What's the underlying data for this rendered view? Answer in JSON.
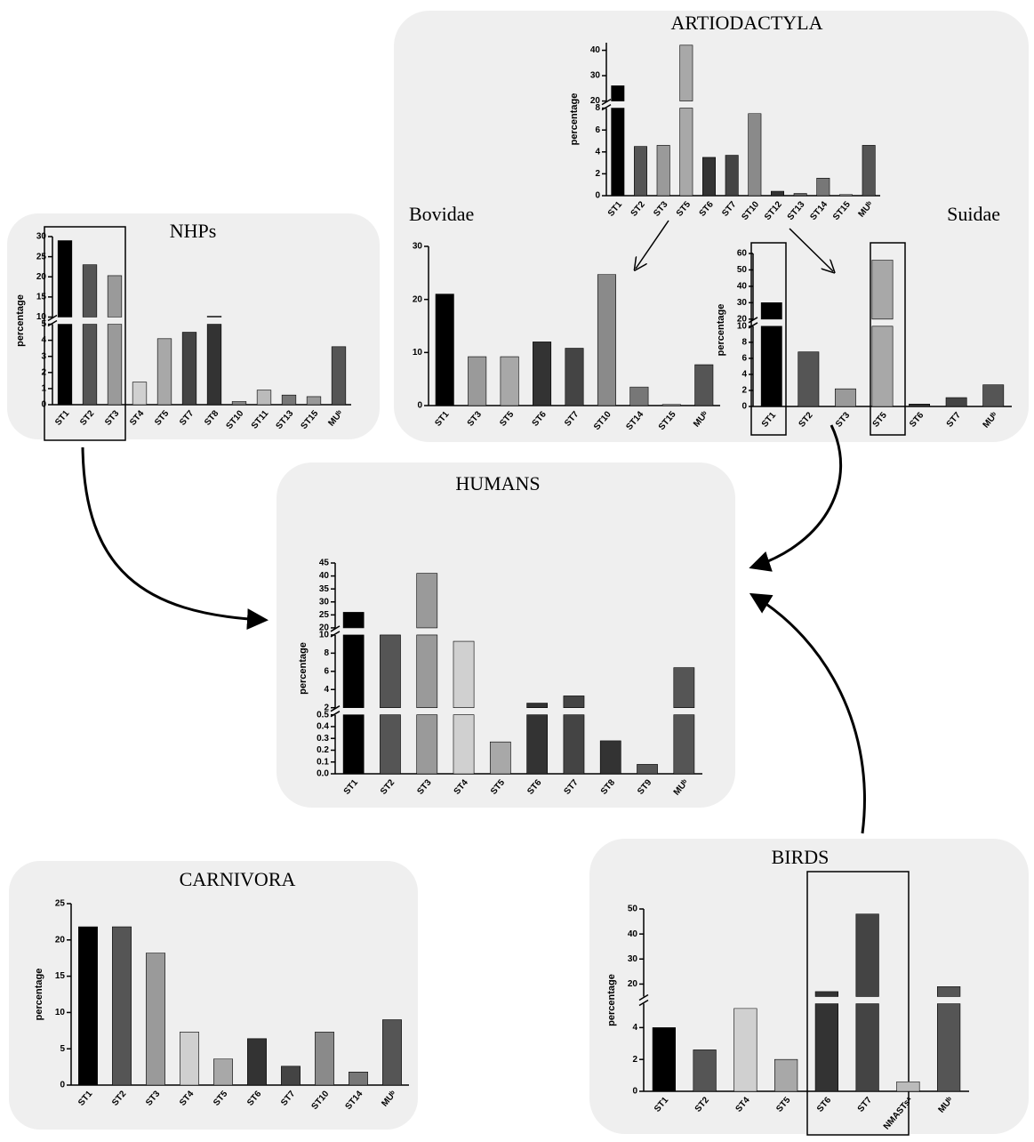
{
  "chart_data": [
    {
      "type": "bar",
      "title": "ARTIODACTYLA",
      "ylabel": "percentage",
      "categories": [
        "ST1",
        "ST2",
        "ST3",
        "ST5",
        "ST6",
        "ST7",
        "ST10",
        "ST12",
        "ST13",
        "ST14",
        "ST15",
        "MUᵇ"
      ],
      "values": [
        26,
        4.5,
        4.6,
        42,
        3.5,
        3.7,
        7.5,
        0.4,
        0.2,
        1.6,
        0.1,
        4.6
      ],
      "colors": [
        "#000000",
        "#555555",
        "#9a9a9a",
        "#a8a8a8",
        "#333333",
        "#444444",
        "#8a8a8a",
        "#333333",
        "#666666",
        "#777777",
        "#bbbbbb",
        "#555555"
      ],
      "y_segments": [
        {
          "ylim": [
            0,
            8
          ],
          "yticks": [
            0,
            2,
            4,
            6,
            8
          ]
        },
        {
          "ylim": [
            20,
            43
          ],
          "yticks": [
            20,
            30,
            40
          ]
        }
      ]
    },
    {
      "type": "bar",
      "title": "Bovidae",
      "categories": [
        "ST1",
        "ST3",
        "ST5",
        "ST6",
        "ST7",
        "ST10",
        "ST14",
        "ST15",
        "MUᵇ"
      ],
      "values": [
        21,
        9.2,
        9.2,
        12,
        10.8,
        24.7,
        3.5,
        0.2,
        7.7
      ],
      "colors": [
        "#000000",
        "#9a9a9a",
        "#a8a8a8",
        "#333333",
        "#444444",
        "#8a8a8a",
        "#777777",
        "#bbbbbb",
        "#555555"
      ],
      "y_segments": [
        {
          "ylim": [
            0,
            30
          ],
          "yticks": [
            0,
            10,
            20,
            30
          ]
        }
      ]
    },
    {
      "type": "bar",
      "title": "Suidae",
      "ylabel": "percentage",
      "categories": [
        "ST1",
        "ST2",
        "ST3",
        "ST5",
        "ST6",
        "ST7",
        "MUᵇ"
      ],
      "values": [
        30,
        6.8,
        2.2,
        56,
        0.3,
        1.1,
        2.7
      ],
      "colors": [
        "#000000",
        "#555555",
        "#9a9a9a",
        "#a8a8a8",
        "#333333",
        "#444444",
        "#555555"
      ],
      "y_segments": [
        {
          "ylim": [
            0,
            10
          ],
          "yticks": [
            0,
            2,
            4,
            6,
            8,
            10
          ]
        },
        {
          "ylim": [
            20,
            60
          ],
          "yticks": [
            20,
            30,
            40,
            50,
            60
          ]
        }
      ]
    },
    {
      "type": "bar",
      "title": "NHPs",
      "ylabel": "percentage",
      "categories": [
        "ST1",
        "ST2",
        "ST3",
        "ST4",
        "ST5",
        "ST7",
        "ST8",
        "ST10",
        "ST11",
        "ST13",
        "ST15",
        "MUᵇ"
      ],
      "values": [
        29,
        23,
        20.3,
        1.4,
        4.1,
        4.5,
        10.2,
        0.2,
        0.9,
        0.6,
        0.5,
        3.6
      ],
      "colors": [
        "#000000",
        "#555555",
        "#9a9a9a",
        "#d0d0d0",
        "#a8a8a8",
        "#444444",
        "#333333",
        "#888888",
        "#bbbbbb",
        "#777777",
        "#999999",
        "#555555"
      ],
      "y_segments": [
        {
          "ylim": [
            0,
            5
          ],
          "yticks": [
            0,
            1,
            2,
            3,
            4,
            5
          ]
        },
        {
          "ylim": [
            10,
            30
          ],
          "yticks": [
            10,
            15,
            20,
            25,
            30
          ]
        }
      ]
    },
    {
      "type": "bar",
      "title": "HUMANS",
      "ylabel": "percentage",
      "categories": [
        "ST1",
        "ST2",
        "ST3",
        "ST4",
        "ST5",
        "ST6",
        "ST7",
        "ST8",
        "ST9",
        "MUᵇ"
      ],
      "values": [
        26,
        10,
        41,
        9.3,
        0.27,
        2.5,
        3.3,
        0.28,
        0.08,
        6.4
      ],
      "colors": [
        "#000000",
        "#555555",
        "#9a9a9a",
        "#d0d0d0",
        "#a8a8a8",
        "#333333",
        "#444444",
        "#333333",
        "#555555",
        "#555555"
      ],
      "y_segments": [
        {
          "ylim": [
            0,
            0.5
          ],
          "yticks": [
            {
              "value": 0,
              "label": "0.0"
            },
            0.1,
            0.2,
            0.3,
            0.4,
            0.5
          ]
        },
        {
          "ylim": [
            2,
            10
          ],
          "yticks": [
            2,
            4,
            6,
            8,
            10
          ]
        },
        {
          "ylim": [
            20,
            45
          ],
          "yticks": [
            20,
            25,
            30,
            35,
            40,
            45
          ]
        }
      ]
    },
    {
      "type": "bar",
      "title": "CARNIVORA",
      "ylabel": "percentage",
      "categories": [
        "ST1",
        "ST2",
        "ST3",
        "ST4",
        "ST5",
        "ST6",
        "ST7",
        "ST10",
        "ST14",
        "MUᵇ"
      ],
      "values": [
        21.8,
        21.8,
        18.2,
        7.3,
        3.6,
        6.4,
        2.6,
        7.3,
        1.8,
        9
      ],
      "colors": [
        "#000000",
        "#555555",
        "#9a9a9a",
        "#d0d0d0",
        "#a8a8a8",
        "#333333",
        "#444444",
        "#8a8a8a",
        "#777777",
        "#555555"
      ],
      "y_segments": [
        {
          "ylim": [
            0,
            25
          ],
          "yticks": [
            0,
            5,
            10,
            15,
            20,
            25
          ]
        }
      ]
    },
    {
      "type": "bar",
      "title": "BIRDS",
      "ylabel": "percentage",
      "categories": [
        "ST1",
        "ST2",
        "ST4",
        "ST5",
        "ST6",
        "ST7",
        "NMASTsᵃ",
        "MUᵇ"
      ],
      "values": [
        4,
        2.6,
        5.2,
        2,
        17,
        48,
        0.6,
        19
      ],
      "colors": [
        "#000000",
        "#555555",
        "#d0d0d0",
        "#a8a8a8",
        "#333333",
        "#444444",
        "#bbbbbb",
        "#555555"
      ],
      "y_segments": [
        {
          "ylim": [
            0,
            5.5
          ],
          "yticks": [
            0,
            2,
            4
          ]
        },
        {
          "ylim": [
            15,
            50
          ],
          "yticks": [
            20,
            30,
            40,
            50
          ]
        }
      ]
    }
  ]
}
